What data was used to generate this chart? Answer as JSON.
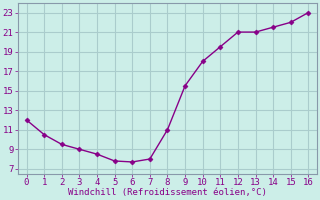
{
  "x": [
    0,
    1,
    2,
    3,
    4,
    5,
    6,
    7,
    8,
    9,
    10,
    11,
    12,
    13,
    14,
    15,
    16
  ],
  "y": [
    12.0,
    10.5,
    9.5,
    9.0,
    8.5,
    7.8,
    7.7,
    8.0,
    11.0,
    15.5,
    18.0,
    19.5,
    21.0,
    21.0,
    21.5,
    22.0,
    23.0
  ],
  "line_color": "#880088",
  "marker": "D",
  "marker_size": 2.5,
  "line_width": 1.0,
  "background_color": "#cceee8",
  "grid_color": "#aacccc",
  "spine_color": "#8899aa",
  "xlabel": "Windchill (Refroidissement éolien,°C)",
  "xlabel_color": "#880088",
  "xlabel_fontsize": 6.5,
  "tick_label_color": "#880088",
  "tick_fontsize": 6.5,
  "xlim": [
    -0.5,
    16.5
  ],
  "ylim": [
    6.5,
    24.0
  ],
  "yticks": [
    7,
    9,
    11,
    13,
    15,
    17,
    19,
    21,
    23
  ],
  "xticks": [
    0,
    1,
    2,
    3,
    4,
    5,
    6,
    7,
    8,
    9,
    10,
    11,
    12,
    13,
    14,
    15,
    16
  ]
}
